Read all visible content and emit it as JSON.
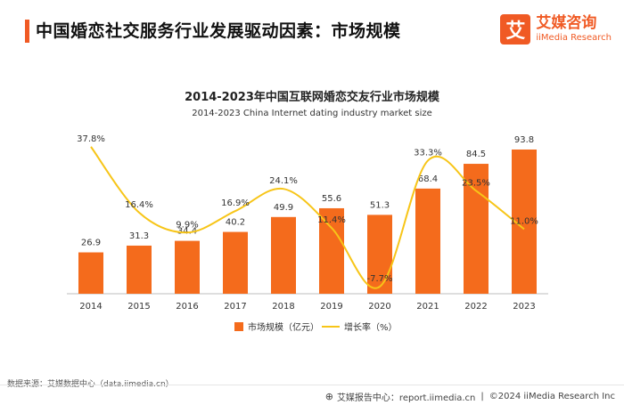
{
  "header": {
    "title": "中国婚恋社交服务行业发展驱动因素：市场规模",
    "brand_logo_char": "艾",
    "brand_cn": "艾媒咨询",
    "brand_en": "iiMedia Research"
  },
  "footer": {
    "source": "数据来源：艾媒数据中心（data.iimedia.cn）",
    "report_center": "艾媒报告中心：report.iimedia.cn",
    "copyright": "©2024  iiMedia Research Inc"
  },
  "colors": {
    "accent": "#f05a24",
    "bar": "#f46b1c",
    "line": "#f7c518"
  },
  "chart_data": {
    "type": "bar",
    "title": "2014-2023年中国互联网婚恋交友行业市场规模",
    "subtitle": "2014-2023 China Internet dating industry market size",
    "categories": [
      "2014",
      "2015",
      "2016",
      "2017",
      "2018",
      "2019",
      "2020",
      "2021",
      "2022",
      "2023"
    ],
    "series": [
      {
        "name": "市场规模（亿元）",
        "type": "bar",
        "values": [
          26.9,
          31.3,
          34.4,
          40.2,
          49.9,
          55.6,
          51.3,
          68.4,
          84.5,
          93.8
        ],
        "labels": [
          "26.9",
          "31.3",
          "34.4",
          "40.2",
          "49.9",
          "55.6",
          "51.3",
          "68.4",
          "84.5",
          "93.8"
        ]
      },
      {
        "name": "增长率（%）",
        "type": "line",
        "smooth": true,
        "values": [
          37.8,
          16.4,
          9.9,
          16.9,
          24.1,
          11.4,
          -7.7,
          33.3,
          23.5,
          11.0
        ],
        "labels": [
          "37.8%",
          "16.4%",
          "9.9%",
          "16.9%",
          "24.1%",
          "11.4%",
          "-7.7%",
          "33.3%",
          "23.5%",
          "11.0%"
        ]
      }
    ],
    "ylim_bar": [
      0,
      110
    ],
    "ylim_line": [
      -10,
      45
    ],
    "grid": false,
    "legend_position": "bottom"
  }
}
